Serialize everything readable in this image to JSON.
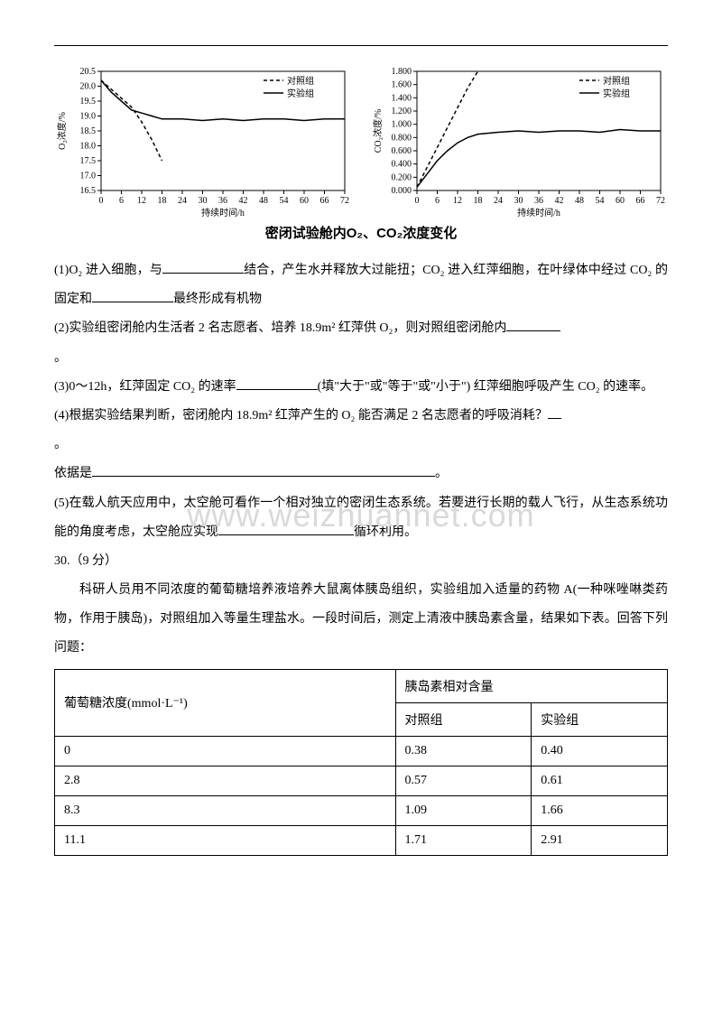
{
  "chart1": {
    "type": "line",
    "y_label": "O₂浓度/%",
    "x_label": "持续时间/h",
    "x_ticks": [
      0,
      6,
      12,
      18,
      24,
      30,
      36,
      42,
      48,
      54,
      60,
      66,
      72
    ],
    "y_ticks": [
      16.5,
      17.0,
      17.5,
      18.0,
      18.5,
      19.0,
      19.5,
      20.0,
      20.5
    ],
    "ylim": [
      16.5,
      20.5
    ],
    "xlim": [
      0,
      72
    ],
    "legend": {
      "control": "对照组",
      "exp": "实验组",
      "control_style": "dashed",
      "exp_style": "solid"
    },
    "series_control": {
      "x": [
        0,
        3,
        6,
        9,
        12,
        15,
        18
      ],
      "y": [
        20.2,
        19.9,
        19.6,
        19.3,
        18.8,
        18.2,
        17.5
      ],
      "dash": "4,3"
    },
    "series_exp": {
      "x": [
        0,
        3,
        6,
        9,
        12,
        15,
        18,
        24,
        30,
        36,
        42,
        48,
        54,
        60,
        66,
        72
      ],
      "y": [
        20.2,
        19.8,
        19.5,
        19.2,
        19.1,
        19.0,
        18.9,
        18.9,
        18.85,
        18.9,
        18.85,
        18.9,
        18.9,
        18.85,
        18.9,
        18.9
      ]
    },
    "line_color": "#000000",
    "axis_color": "#000000",
    "font_size": 10
  },
  "chart2": {
    "type": "line",
    "y_label": "CO₂浓度/%",
    "x_label": "持续时间/h",
    "x_ticks": [
      0,
      6,
      12,
      18,
      24,
      30,
      36,
      42,
      48,
      54,
      60,
      66,
      72
    ],
    "y_ticks": [
      0.0,
      0.2,
      0.4,
      0.6,
      0.8,
      1.0,
      1.2,
      1.4,
      1.6,
      1.8
    ],
    "ylim": [
      0,
      1.8
    ],
    "xlim": [
      0,
      72
    ],
    "legend": {
      "control": "对照组",
      "exp": "实验组",
      "control_style": "dashed",
      "exp_style": "solid"
    },
    "series_control": {
      "x": [
        0,
        3,
        6,
        9,
        12,
        15,
        18
      ],
      "y": [
        0.05,
        0.35,
        0.65,
        0.95,
        1.25,
        1.55,
        1.8
      ],
      "dash": "4,3"
    },
    "series_exp": {
      "x": [
        0,
        3,
        6,
        9,
        12,
        15,
        18,
        24,
        30,
        36,
        42,
        48,
        54,
        60,
        66,
        72
      ],
      "y": [
        0.05,
        0.25,
        0.45,
        0.6,
        0.72,
        0.8,
        0.85,
        0.88,
        0.9,
        0.88,
        0.9,
        0.9,
        0.88,
        0.92,
        0.9,
        0.9
      ]
    },
    "line_color": "#000000",
    "axis_color": "#000000",
    "font_size": 10
  },
  "chart_caption": "密闭试验舱内O₂、CO₂浓度变化",
  "q1": {
    "prefix": "(1)O₂ 进入细胞，与",
    "mid1": "结合，产生水并释放大过能扭；CO₂ 进入红萍细胞，在叶绿体中经过 CO₂ 的固定和",
    "tail": "最终形成有机物"
  },
  "q2": {
    "prefix": "(2)实验组密闭舱内生活者 2 名志愿者、培养 18.9m² 红萍供 O₂，则对照组密闭舱内",
    "tail": "。"
  },
  "q3": {
    "prefix": "(3)0～12h，红萍固定 CO₂ 的速率",
    "hint": "(填\"大于\"或\"等于\"或\"小于\") 红萍细胞呼吸产生 CO₂ 的速率。"
  },
  "q4": {
    "prefix": "(4)根据实验结果判断，密闭舱内 18.9m² 红萍产生的 O₂ 能否满足 2 名志愿者的呼吸消耗？",
    "line2": "。",
    "basis_label": "依据是",
    "tail": "。"
  },
  "q5": {
    "prefix": "(5)在载人航天应用中，太空舱可看作一个相对独立的密闭生态系统。若要进行长期的载人飞行，从生态系统功能的角度考虑，太空舱应实现",
    "tail": "循环利用。"
  },
  "q30_header": "30.（9 分）",
  "q30_body": "科研人员用不同浓度的葡萄糖培养液培养大鼠离体胰岛组织，实验组加入适量的药物 A(一种咪唑啉类药物，作用于胰岛)，对照组加入等量生理盐水。一段时间后，测定上清液中胰岛素含量，结果如下表。回答下列问题：",
  "table": {
    "col1_header": "葡萄糖浓度(mmol·L⁻¹)",
    "col2_header": "胰岛素相对含量",
    "sub1": "对照组",
    "sub2": "实验组",
    "rows": [
      {
        "c": "0",
        "a": "0.38",
        "b": "0.40"
      },
      {
        "c": "2.8",
        "a": "0.57",
        "b": "0.61"
      },
      {
        "c": "8.3",
        "a": "1.09",
        "b": "1.66"
      },
      {
        "c": "11.1",
        "a": "1.71",
        "b": "2.91"
      }
    ]
  },
  "watermark": "www.weizhuannet.com"
}
